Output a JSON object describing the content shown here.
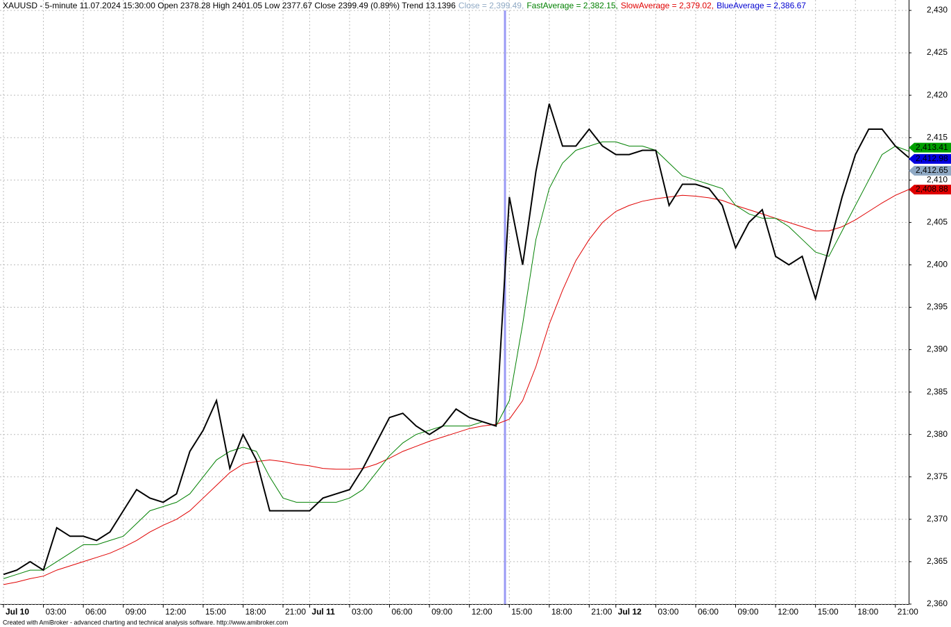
{
  "chart_data": {
    "type": "line",
    "title": "XAUUSD - 5-minute 11.07.2024 15:30:00 Open 2378.28 High 2401.05 Low 2377.67 Close 2399.49 (0.89%) Trend 13.1396",
    "legend": [
      {
        "text": "Close = 2,399.49,",
        "color": "#8fa9c4"
      },
      {
        "text": "FastAverage = 2,382.15,",
        "color": "#008000"
      },
      {
        "text": "SlowAverage = 2,379.02,",
        "color": "#e00000"
      },
      {
        "text": "BlueAverage = 2,386.67",
        "color": "#0000d0"
      }
    ],
    "footer": "Created with AmiBroker - advanced charting and technical analysis software. http://www.amibroker.com",
    "x": [
      "Jul 10 00:00",
      "Jul 10 01:00",
      "Jul 10 02:00",
      "Jul 10 03:00",
      "Jul 10 04:00",
      "Jul 10 05:00",
      "Jul 10 06:00",
      "Jul 10 07:00",
      "Jul 10 08:00",
      "Jul 10 09:00",
      "Jul 10 10:00",
      "Jul 10 11:00",
      "Jul 10 12:00",
      "Jul 10 13:00",
      "Jul 10 14:00",
      "Jul 10 15:00",
      "Jul 10 16:00",
      "Jul 10 17:00",
      "Jul 10 18:00",
      "Jul 10 19:00",
      "Jul 10 20:00",
      "Jul 10 21:00",
      "Jul 10 23:00",
      "Jul 11 00:00",
      "Jul 11 01:00",
      "Jul 11 02:00",
      "Jul 11 03:00",
      "Jul 11 04:00",
      "Jul 11 05:00",
      "Jul 11 06:00",
      "Jul 11 07:00",
      "Jul 11 08:00",
      "Jul 11 09:00",
      "Jul 11 10:00",
      "Jul 11 11:00",
      "Jul 11 12:00",
      "Jul 11 13:00",
      "Jul 11 14:00",
      "Jul 11 15:00",
      "Jul 11 16:00",
      "Jul 11 17:00",
      "Jul 11 18:00",
      "Jul 11 19:00",
      "Jul 11 20:00",
      "Jul 11 21:00",
      "Jul 11 23:00",
      "Jul 12 00:00",
      "Jul 12 01:00",
      "Jul 12 02:00",
      "Jul 12 03:00",
      "Jul 12 04:00",
      "Jul 12 05:00",
      "Jul 12 06:00",
      "Jul 12 07:00",
      "Jul 12 08:00",
      "Jul 12 09:00",
      "Jul 12 10:00",
      "Jul 12 11:00",
      "Jul 12 12:00",
      "Jul 12 13:00",
      "Jul 12 14:00",
      "Jul 12 15:00",
      "Jul 12 16:00",
      "Jul 12 17:00",
      "Jul 12 18:00",
      "Jul 12 19:00",
      "Jul 12 20:00",
      "Jul 12 21:00",
      "Jul 12 22:00"
    ],
    "series": [
      {
        "color": "#000000",
        "values": [
          2363.5,
          2364,
          2365,
          2364,
          2369,
          2368,
          2368,
          2367.5,
          2368.5,
          2371,
          2373.5,
          2372.5,
          2372,
          2373,
          2378,
          2380.5,
          2384,
          2376,
          2380,
          2377,
          2371,
          2371,
          2371,
          2371,
          2372.5,
          2373,
          2373.5,
          2376,
          2379,
          2382,
          2382.5,
          2381,
          2380,
          2381,
          2383,
          2382,
          2381.5,
          2381,
          2408,
          2400,
          2411,
          2419,
          2414,
          2414,
          2416,
          2414,
          2413,
          2413,
          2413.5,
          2413.5,
          2407,
          2409.5,
          2409.5,
          2409,
          2407,
          2402,
          2405,
          2406.5,
          2401,
          2400,
          2401,
          2396,
          2402,
          2408,
          2413,
          2416,
          2416,
          2414,
          2412.65
        ]
      },
      {
        "color": "#008000",
        "values": [
          2363,
          2363.5,
          2364,
          2364,
          2365,
          2366,
          2367,
          2367,
          2367.5,
          2368,
          2369.5,
          2371,
          2371.5,
          2372,
          2373,
          2375,
          2377,
          2378,
          2378.5,
          2378,
          2375,
          2372.5,
          2372,
          2372,
          2372,
          2372,
          2372.5,
          2373.5,
          2375.5,
          2377.5,
          2379,
          2380,
          2380.5,
          2381,
          2381,
          2381,
          2381.5,
          2381,
          2384,
          2393,
          2403,
          2409,
          2412,
          2413.5,
          2414,
          2414.5,
          2414.5,
          2414,
          2414,
          2413.5,
          2412,
          2410.5,
          2410,
          2409.5,
          2409,
          2407,
          2406,
          2405.5,
          2405.5,
          2404.5,
          2403,
          2401.5,
          2401,
          2404,
          2407,
          2410,
          2413,
          2414,
          2413.41
        ]
      },
      {
        "color": "#e00000",
        "values": [
          2362.3,
          2362.6,
          2363,
          2363.3,
          2364,
          2364.5,
          2365,
          2365.5,
          2366,
          2366.7,
          2367.5,
          2368.5,
          2369.3,
          2370,
          2371,
          2372.5,
          2374,
          2375.5,
          2376.5,
          2376.8,
          2377,
          2376.8,
          2376.5,
          2376.3,
          2376,
          2375.9,
          2375.9,
          2376,
          2376.5,
          2377.2,
          2378,
          2378.6,
          2379.2,
          2379.7,
          2380.2,
          2380.7,
          2381,
          2381.2,
          2381.8,
          2384,
          2388,
          2393,
          2397,
          2400.5,
          2403,
          2405,
          2406.3,
          2407,
          2407.5,
          2407.8,
          2408,
          2408.2,
          2408.1,
          2407.9,
          2407.6,
          2407,
          2406.5,
          2406,
          2405.5,
          2405,
          2404.5,
          2404,
          2404,
          2404.5,
          2405.3,
          2406.3,
          2407.3,
          2408.2,
          2408.88
        ]
      }
    ],
    "price_tags": [
      {
        "value": 2413.41,
        "label": "2,413.41",
        "color": "#00a000"
      },
      {
        "value": 2412.98,
        "label": "2,412.98",
        "color": "#0000e0"
      },
      {
        "value": 2412.65,
        "label": "2,412.65",
        "color": "#8fa9c4"
      },
      {
        "value": 2408.88,
        "label": "2,408.88",
        "color": "#e00000"
      }
    ],
    "ylim": [
      2360,
      2430
    ],
    "yticks": [
      {
        "value": 2360,
        "label": "2,360"
      },
      {
        "value": 2365,
        "label": "2,365"
      },
      {
        "value": 2370,
        "label": "2,370"
      },
      {
        "value": 2375,
        "label": "2,375"
      },
      {
        "value": 2380,
        "label": "2,380"
      },
      {
        "value": 2385,
        "label": "2,385"
      },
      {
        "value": 2390,
        "label": "2,390"
      },
      {
        "value": 2395,
        "label": "2,395"
      },
      {
        "value": 2400,
        "label": "2,400"
      },
      {
        "value": 2405,
        "label": "2,405"
      },
      {
        "value": 2410,
        "label": "2,410"
      },
      {
        "value": 2415,
        "label": "2,415"
      },
      {
        "value": 2420,
        "label": "2,420"
      },
      {
        "value": 2425,
        "label": "2,425"
      },
      {
        "value": 2430,
        "label": "2,430"
      }
    ],
    "xticks": [
      {
        "value": "Jul 10 00:00",
        "label": "Jul 10"
      },
      {
        "value": "Jul 10 03:00",
        "label": "03:00"
      },
      {
        "value": "Jul 10 06:00",
        "label": "06:00"
      },
      {
        "value": "Jul 10 09:00",
        "label": "09:00"
      },
      {
        "value": "Jul 10 12:00",
        "label": "12:00"
      },
      {
        "value": "Jul 10 15:00",
        "label": "15:00"
      },
      {
        "value": "Jul 10 18:00",
        "label": "18:00"
      },
      {
        "value": "Jul 10 21:00",
        "label": "21:00"
      },
      {
        "value": "Jul 11 00:00",
        "label": "Jul 11"
      },
      {
        "value": "Jul 11 03:00",
        "label": "03:00"
      },
      {
        "value": "Jul 11 06:00",
        "label": "06:00"
      },
      {
        "value": "Jul 11 09:00",
        "label": "09:00"
      },
      {
        "value": "Jul 11 12:00",
        "label": "12:00"
      },
      {
        "value": "Jul 11 15:00",
        "label": "15:00"
      },
      {
        "value": "Jul 11 18:00",
        "label": "18:00"
      },
      {
        "value": "Jul 11 21:00",
        "label": "21:00"
      },
      {
        "value": "Jul 12 00:00",
        "label": "Jul 12"
      },
      {
        "value": "Jul 12 03:00",
        "label": "03:00"
      },
      {
        "value": "Jul 12 06:00",
        "label": "06:00"
      },
      {
        "value": "Jul 12 09:00",
        "label": "09:00"
      },
      {
        "value": "Jul 12 12:00",
        "label": "12:00"
      },
      {
        "value": "Jul 12 15:00",
        "label": "15:00"
      },
      {
        "value": "Jul 12 18:00",
        "label": "18:00"
      },
      {
        "value": "Jul 12 21:00",
        "label": "21:00"
      }
    ],
    "grid": true
  }
}
